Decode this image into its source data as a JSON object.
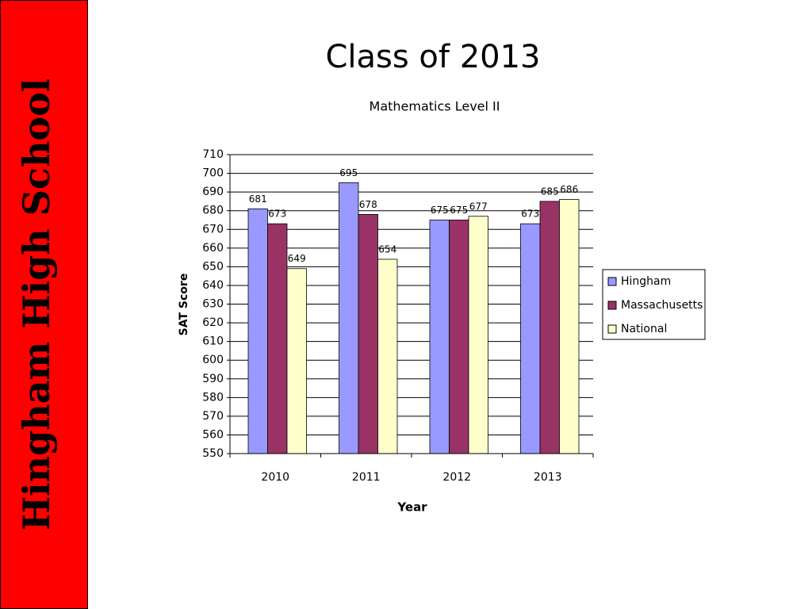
{
  "sidebar": {
    "text": "Hingham High School"
  },
  "chart_data": {
    "type": "bar",
    "title": "Class of 2013",
    "subtitle": "Mathematics Level II",
    "x_label": "Year",
    "y_label": "SAT Score",
    "categories": [
      "2010",
      "2011",
      "2012",
      "2013"
    ],
    "series": [
      {
        "name": "Hingham",
        "color": "#9999ff",
        "values": [
          681,
          695,
          675,
          673
        ]
      },
      {
        "name": "Massachusetts",
        "color": "#993366",
        "values": [
          673,
          678,
          675,
          685
        ]
      },
      {
        "name": "National",
        "color": "#ffffcc",
        "values": [
          649,
          654,
          677,
          686
        ]
      }
    ],
    "ylim": [
      550,
      710
    ],
    "yticks": [
      550,
      560,
      570,
      580,
      590,
      600,
      610,
      620,
      630,
      640,
      650,
      660,
      670,
      680,
      690,
      700,
      710
    ],
    "grid": true,
    "legend": "right"
  }
}
